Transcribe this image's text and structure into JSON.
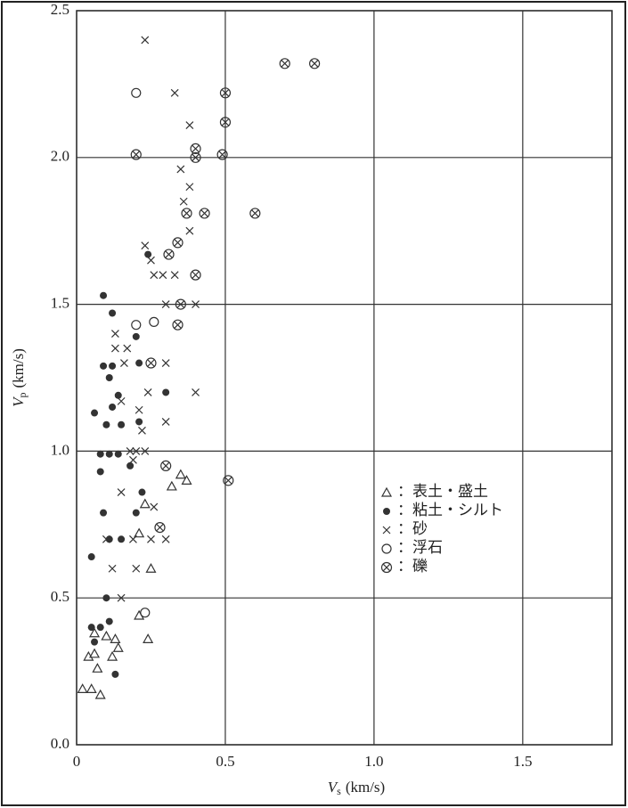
{
  "chart_data": {
    "type": "scatter",
    "xlabel": {
      "var": "V",
      "sub": "s",
      "unit": "(km/s)"
    },
    "ylabel": {
      "var": "V",
      "sub": "p",
      "unit": "(km/s)"
    },
    "xlim": [
      0,
      1.8
    ],
    "ylim": [
      0,
      2.5
    ],
    "xticks": [
      0,
      0.5,
      {
        "value": 1,
        "label": "1.0"
      },
      1.5
    ],
    "yticks": [
      {
        "value": 0,
        "label": "0.0"
      },
      0.5,
      {
        "value": 1,
        "label": "1.0"
      },
      1.5,
      {
        "value": 2,
        "label": "2.0"
      },
      2.5
    ],
    "grid": true,
    "series": [
      {
        "name": "：表土・盛土",
        "marker": "triangle",
        "color": "#333333",
        "x": [
          0.02,
          0.05,
          0.08,
          0.04,
          0.06,
          0.06,
          0.1,
          0.07,
          0.13,
          0.12,
          0.14,
          0.21,
          0.21,
          0.23,
          0.25,
          0.24,
          0.32,
          0.35,
          0.37
        ],
        "y": [
          0.19,
          0.19,
          0.17,
          0.3,
          0.31,
          0.38,
          0.37,
          0.26,
          0.36,
          0.3,
          0.33,
          0.44,
          0.72,
          0.82,
          0.6,
          0.36,
          0.88,
          0.92,
          0.9
        ]
      },
      {
        "name": "：粘土・シルト",
        "marker": "filled-circle",
        "color": "#333333",
        "x": [
          0.09,
          0.12,
          0.09,
          0.12,
          0.11,
          0.14,
          0.12,
          0.06,
          0.1,
          0.15,
          0.21,
          0.21,
          0.2,
          0.3,
          0.24,
          0.08,
          0.11,
          0.14,
          0.18,
          0.08,
          0.22,
          0.09,
          0.2,
          0.05,
          0.11,
          0.15,
          0.1,
          0.11,
          0.05,
          0.08,
          0.06,
          0.13
        ],
        "y": [
          1.53,
          1.47,
          1.29,
          1.29,
          1.25,
          1.19,
          1.15,
          1.13,
          1.09,
          1.09,
          1.1,
          1.3,
          1.39,
          1.2,
          1.67,
          0.99,
          0.99,
          0.99,
          0.95,
          0.93,
          0.86,
          0.79,
          0.79,
          0.64,
          0.7,
          0.7,
          0.5,
          0.42,
          0.4,
          0.4,
          0.35,
          0.24
        ]
      },
      {
        "name": "：砂",
        "marker": "x",
        "color": "#333333",
        "x": [
          0.23,
          0.33,
          0.38,
          0.35,
          0.38,
          0.38,
          0.36,
          0.23,
          0.25,
          0.26,
          0.29,
          0.33,
          0.3,
          0.4,
          0.13,
          0.13,
          0.17,
          0.16,
          0.3,
          0.24,
          0.4,
          0.15,
          0.21,
          0.3,
          0.22,
          0.18,
          0.2,
          0.23,
          0.19,
          0.15,
          0.26,
          0.1,
          0.19,
          0.25,
          0.3,
          0.12,
          0.2,
          0.15
        ],
        "y": [
          2.4,
          2.22,
          2.11,
          1.96,
          1.9,
          1.75,
          1.85,
          1.7,
          1.65,
          1.6,
          1.6,
          1.6,
          1.5,
          1.5,
          1.4,
          1.35,
          1.35,
          1.3,
          1.3,
          1.2,
          1.2,
          1.17,
          1.14,
          1.1,
          1.07,
          1.0,
          1.0,
          1.0,
          0.97,
          0.86,
          0.81,
          0.7,
          0.7,
          0.7,
          0.7,
          0.6,
          0.6,
          0.5
        ]
      },
      {
        "name": "：浮石",
        "marker": "circle",
        "color": "#333333",
        "x": [
          0.2,
          0.2,
          0.26,
          0.23
        ],
        "y": [
          2.22,
          1.43,
          1.44,
          0.45
        ]
      },
      {
        "name": "：礫",
        "marker": "circle-x",
        "color": "#333333",
        "x": [
          0.7,
          0.8,
          0.5,
          0.5,
          0.4,
          0.4,
          0.2,
          0.49,
          0.37,
          0.43,
          0.6,
          0.34,
          0.31,
          0.4,
          0.35,
          0.34,
          0.25,
          0.3,
          0.28,
          0.51
        ],
        "y": [
          2.32,
          2.32,
          2.22,
          2.12,
          2.03,
          2.0,
          2.01,
          2.01,
          1.81,
          1.81,
          1.81,
          1.71,
          1.67,
          1.6,
          1.5,
          1.43,
          1.3,
          0.95,
          0.74,
          0.9
        ]
      }
    ]
  }
}
